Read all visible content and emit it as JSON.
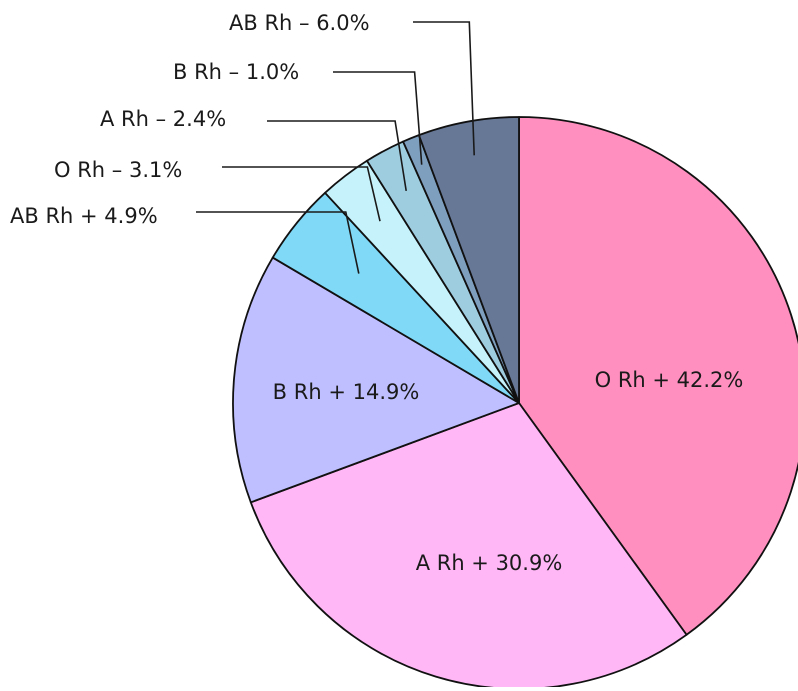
{
  "chart_data": {
    "type": "pie",
    "slices": [
      {
        "label": "O Rh + 42.2%",
        "category": "O Rh +",
        "value": 42.2,
        "color": "#ff8fbf",
        "label_placement": "inside"
      },
      {
        "label": "A Rh + 30.9%",
        "category": "A Rh +",
        "value": 30.9,
        "color": "#ffb7f5",
        "label_placement": "inside"
      },
      {
        "label": "B Rh + 14.9%",
        "category": "B Rh +",
        "value": 14.9,
        "color": "#bfbfff",
        "label_placement": "inside"
      },
      {
        "label": "AB Rh + 4.9%",
        "category": "AB Rh +",
        "value": 4.9,
        "color": "#7fd9f7",
        "label_placement": "outside"
      },
      {
        "label": "O Rh – 3.1%",
        "category": "O Rh –",
        "value": 3.1,
        "color": "#c6f3fb",
        "label_placement": "outside"
      },
      {
        "label": "A Rh – 2.4%",
        "category": "A Rh –",
        "value": 2.4,
        "color": "#9fcde0",
        "label_placement": "outside"
      },
      {
        "label": "B Rh – 1.0%",
        "category": "B Rh –",
        "value": 1.0,
        "color": "#7f9fbf",
        "label_placement": "outside"
      },
      {
        "label": "AB Rh – 6.0%",
        "category": "AB Rh –",
        "value": 6.0,
        "color": "#667896",
        "label_placement": "outside"
      }
    ],
    "start_angle": "12 o'clock",
    "direction": "clockwise",
    "legend": "none"
  }
}
